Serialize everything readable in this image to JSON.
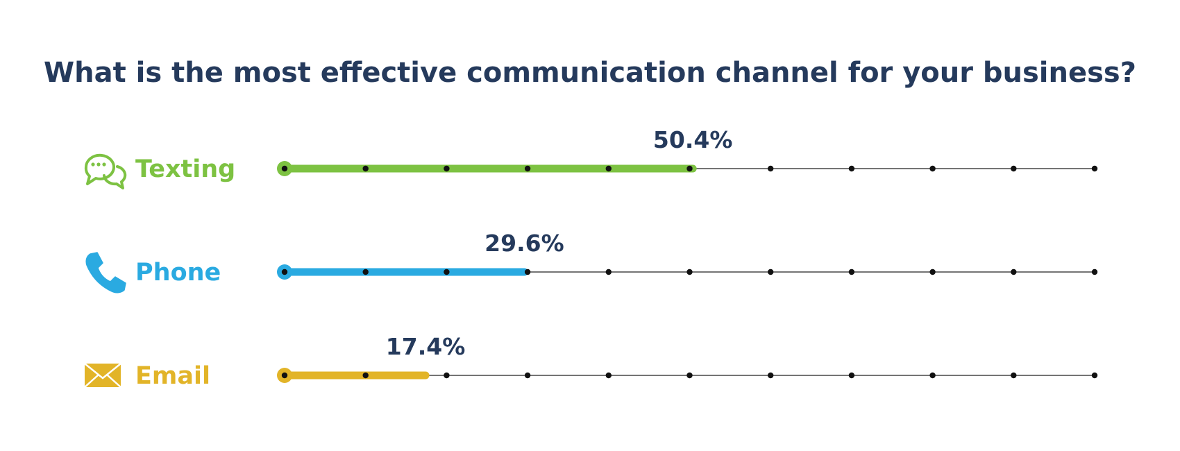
{
  "chart_data": {
    "type": "bar",
    "orientation": "horizontal",
    "title": "What is the most effective communication channel for your business?",
    "categories": [
      "Texting",
      "Phone",
      "Email"
    ],
    "values": [
      50.4,
      29.6,
      17.4
    ],
    "value_labels": [
      "50.4%",
      "29.6%",
      "17.4%"
    ],
    "icons": [
      "chat-bubbles-icon",
      "phone-icon",
      "envelope-icon"
    ],
    "colors": [
      "#7dc242",
      "#2aaae1",
      "#e2b428"
    ],
    "text_color": "#253a5c",
    "xlim": [
      0,
      100
    ],
    "tick_step": 10,
    "grid": false,
    "legend": "none"
  }
}
